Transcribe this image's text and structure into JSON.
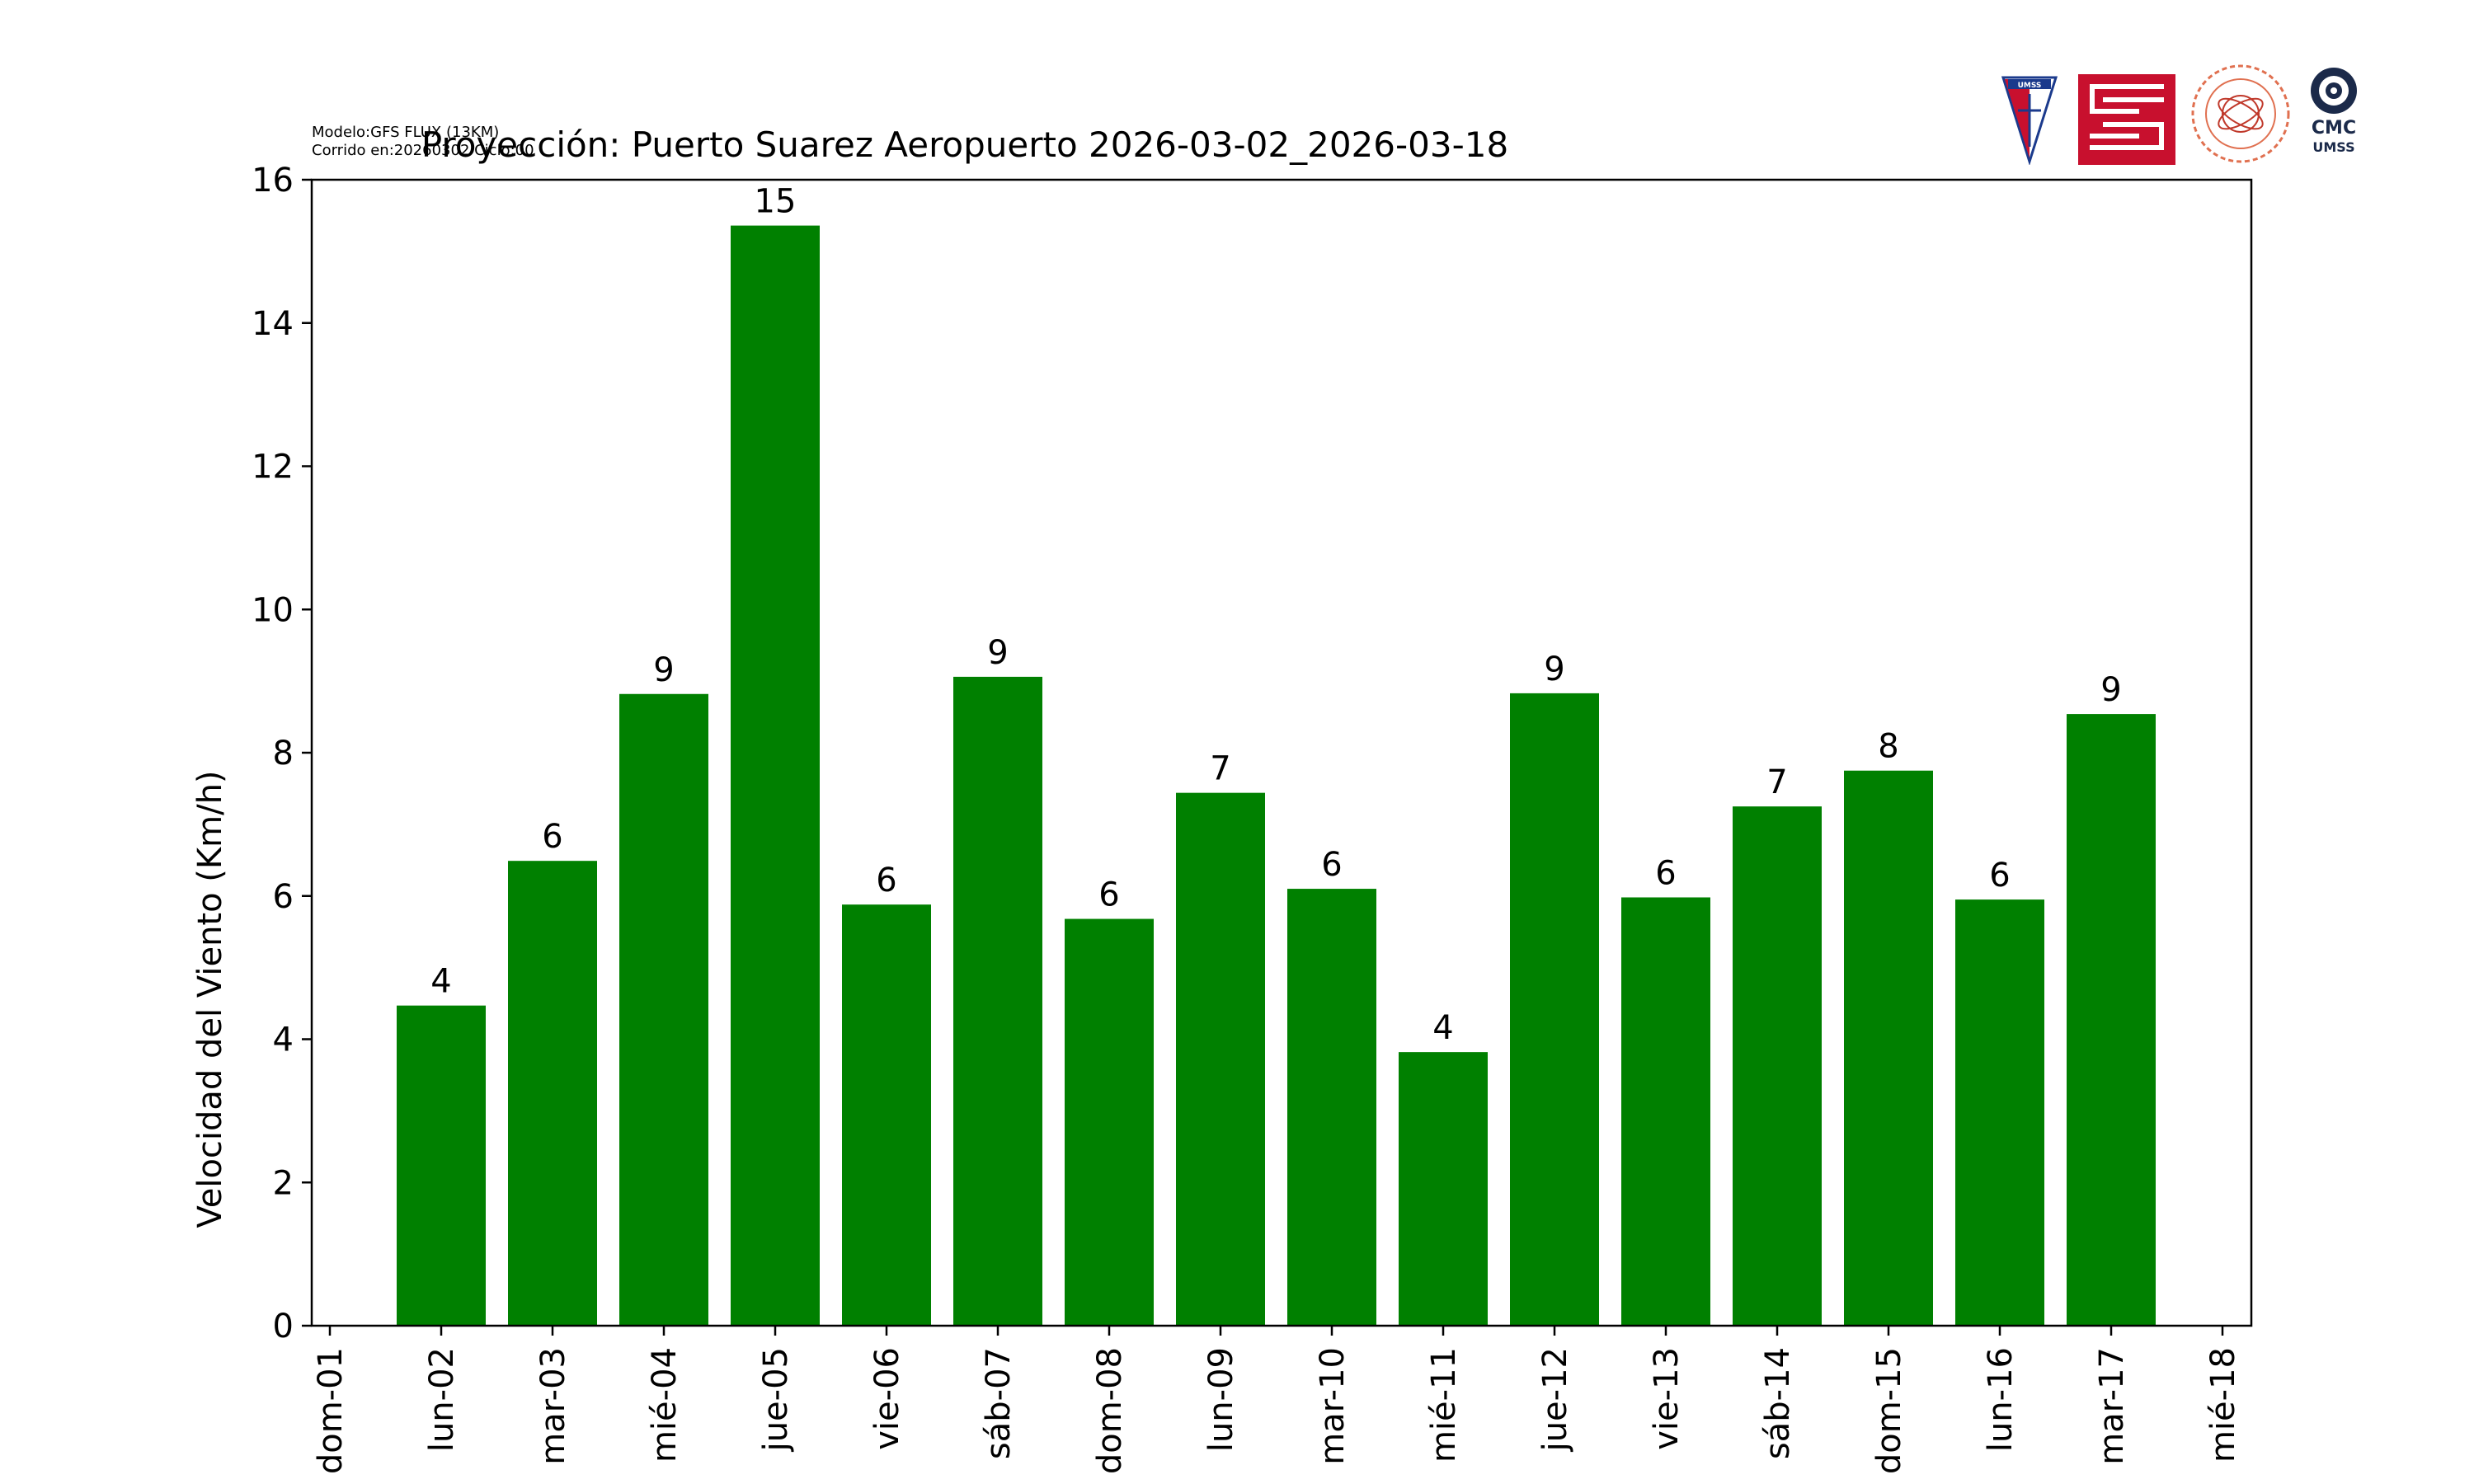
{
  "model_info": {
    "line1": "Modelo:GFS FLUX (13KM)",
    "line2": "Corrido en:20260302 Ciclo:00"
  },
  "logos": {
    "umss_shield": "UMSS",
    "cmc_top": "CMC",
    "cmc_bottom": "UMSS"
  },
  "colors": {
    "bar": "#008000",
    "axis": "#000000",
    "text": "#000000"
  },
  "chart_data": {
    "type": "bar",
    "title": "Proyección: Puerto Suarez Aeropuerto  2026-03-02_2026-03-18",
    "xlabel": "",
    "ylabel": "Velocidad del Viento (Km/h)",
    "ylim": [
      0,
      16
    ],
    "yticks": [
      0,
      2,
      4,
      6,
      8,
      10,
      12,
      14,
      16
    ],
    "xticks": [
      "dom-01",
      "lun-02",
      "mar-03",
      "mié-04",
      "jue-05",
      "vie-06",
      "sáb-07",
      "dom-08",
      "lun-09",
      "mar-10",
      "mié-11",
      "jue-12",
      "vie-13",
      "sáb-14",
      "dom-15",
      "lun-16",
      "mar-17",
      "mié-18"
    ],
    "categories": [
      "lun-02",
      "mar-03",
      "mié-04",
      "jue-05",
      "vie-06",
      "sáb-07",
      "dom-08",
      "lun-09",
      "mar-10",
      "mié-11",
      "jue-12",
      "vie-13",
      "sáb-14",
      "dom-15",
      "lun-16",
      "mar-17"
    ],
    "values": [
      4.47,
      6.49,
      8.82,
      15.36,
      5.88,
      9.06,
      5.68,
      7.44,
      6.1,
      3.82,
      8.83,
      5.98,
      7.25,
      7.75,
      5.95,
      8.54
    ],
    "data_labels": [
      "4",
      "6",
      "9",
      "15",
      "6",
      "9",
      "6",
      "7",
      "6",
      "4",
      "9",
      "6",
      "7",
      "8",
      "6",
      "9"
    ],
    "grid": false,
    "legend": "none"
  }
}
